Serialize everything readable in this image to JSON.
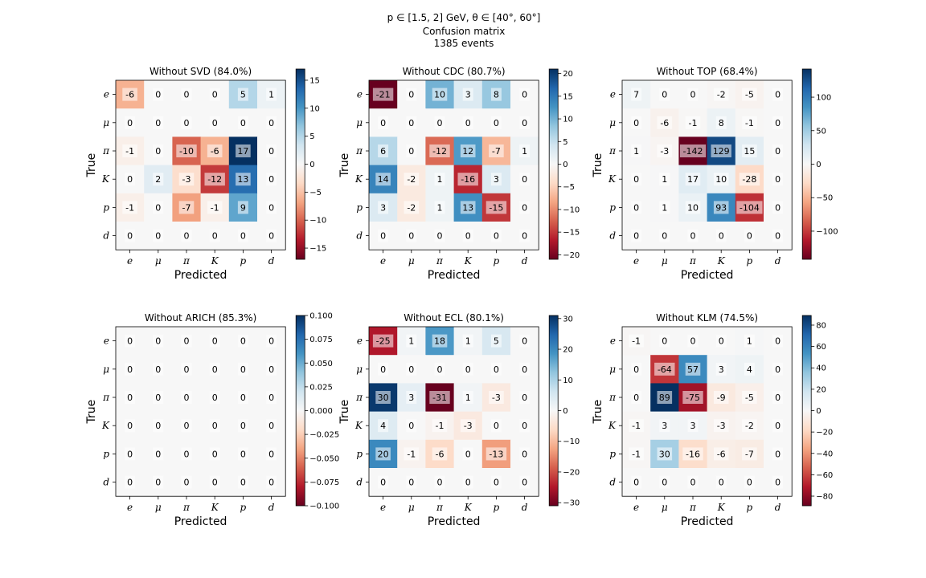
{
  "suptitle": {
    "line1": "p ∈ [1.5, 2] GeV, θ ∈ [40°, 60°]",
    "line2": "Confusion matrix",
    "line3": "1385 events"
  },
  "chart_data": [
    {
      "type": "heatmap",
      "title": "Without SVD (84.0%)",
      "xlabel": "Predicted",
      "ylabel": "True",
      "x_categories": [
        "e",
        "μ",
        "π",
        "K",
        "p",
        "d"
      ],
      "y_categories": [
        "e",
        "μ",
        "π",
        "K",
        "p",
        "d"
      ],
      "values": [
        [
          -6,
          0,
          0,
          0,
          5,
          1
        ],
        [
          0,
          0,
          0,
          0,
          0,
          0
        ],
        [
          -1,
          0,
          -10,
          -6,
          17,
          0
        ],
        [
          0,
          2,
          -3,
          -12,
          13,
          0
        ],
        [
          -1,
          0,
          -7,
          -1,
          9,
          0
        ],
        [
          0,
          0,
          0,
          0,
          0,
          0
        ]
      ],
      "colorbar": {
        "range": [
          -17,
          17
        ],
        "ticks": [
          15,
          10,
          5,
          0,
          -5,
          -10,
          -15
        ],
        "tick_labels": [
          "15",
          "10",
          "5",
          "0",
          "−5",
          "−10",
          "−15"
        ]
      }
    },
    {
      "type": "heatmap",
      "title": "Without CDC (80.7%)",
      "xlabel": "Predicted",
      "ylabel": "True",
      "x_categories": [
        "e",
        "μ",
        "π",
        "K",
        "p",
        "d"
      ],
      "y_categories": [
        "e",
        "μ",
        "π",
        "K",
        "p",
        "d"
      ],
      "values": [
        [
          -21,
          0,
          10,
          3,
          8,
          0
        ],
        [
          0,
          0,
          0,
          0,
          0,
          0
        ],
        [
          6,
          0,
          -12,
          12,
          -7,
          1
        ],
        [
          14,
          -2,
          1,
          -16,
          3,
          0
        ],
        [
          3,
          -2,
          1,
          13,
          -15,
          0
        ],
        [
          0,
          0,
          0,
          0,
          0,
          0
        ]
      ],
      "colorbar": {
        "range": [
          -21,
          21
        ],
        "ticks": [
          20,
          15,
          10,
          5,
          0,
          -5,
          -10,
          -15,
          -20
        ],
        "tick_labels": [
          "20",
          "15",
          "10",
          "5",
          "0",
          "−5",
          "−10",
          "−15",
          "−20"
        ]
      }
    },
    {
      "type": "heatmap",
      "title": "Without TOP (68.4%)",
      "xlabel": "Predicted",
      "ylabel": "True",
      "x_categories": [
        "e",
        "μ",
        "π",
        "K",
        "p",
        "d"
      ],
      "y_categories": [
        "e",
        "μ",
        "π",
        "K",
        "p",
        "d"
      ],
      "values": [
        [
          7,
          0,
          0,
          -2,
          -5,
          0
        ],
        [
          0,
          -6,
          -1,
          8,
          -1,
          0
        ],
        [
          1,
          -3,
          -142,
          129,
          15,
          0
        ],
        [
          0,
          1,
          17,
          10,
          -28,
          0
        ],
        [
          0,
          1,
          10,
          93,
          -104,
          0
        ],
        [
          0,
          0,
          0,
          0,
          0,
          0
        ]
      ],
      "colorbar": {
        "range": [
          -142,
          142
        ],
        "ticks": [
          100,
          50,
          0,
          -50,
          -100
        ],
        "tick_labels": [
          "100",
          "50",
          "0",
          "−50",
          "−100"
        ]
      }
    },
    {
      "type": "heatmap",
      "title": "Without ARICH (85.3%)",
      "xlabel": "Predicted",
      "ylabel": "True",
      "x_categories": [
        "e",
        "μ",
        "π",
        "K",
        "p",
        "d"
      ],
      "y_categories": [
        "e",
        "μ",
        "π",
        "K",
        "p",
        "d"
      ],
      "values": [
        [
          0,
          0,
          0,
          0,
          0,
          0
        ],
        [
          0,
          0,
          0,
          0,
          0,
          0
        ],
        [
          0,
          0,
          0,
          0,
          0,
          0
        ],
        [
          0,
          0,
          0,
          0,
          0,
          0
        ],
        [
          0,
          0,
          0,
          0,
          0,
          0
        ],
        [
          0,
          0,
          0,
          0,
          0,
          0
        ]
      ],
      "colorbar": {
        "range": [
          -0.1,
          0.1
        ],
        "ticks": [
          0.1,
          0.075,
          0.05,
          0.025,
          0,
          -0.025,
          -0.05,
          -0.075,
          -0.1
        ],
        "tick_labels": [
          "0.100",
          "0.075",
          "0.050",
          "0.025",
          "0.000",
          "−0.025",
          "−0.050",
          "−0.075",
          "−0.100"
        ]
      }
    },
    {
      "type": "heatmap",
      "title": "Without ECL (80.1%)",
      "xlabel": "Predicted",
      "ylabel": "True",
      "x_categories": [
        "e",
        "μ",
        "π",
        "K",
        "p",
        "d"
      ],
      "y_categories": [
        "e",
        "μ",
        "π",
        "K",
        "p",
        "d"
      ],
      "values": [
        [
          -25,
          1,
          18,
          1,
          5,
          0
        ],
        [
          0,
          0,
          0,
          0,
          0,
          0
        ],
        [
          30,
          3,
          -31,
          1,
          -3,
          0
        ],
        [
          4,
          0,
          -1,
          -3,
          0,
          0
        ],
        [
          20,
          -1,
          -6,
          0,
          -13,
          0
        ],
        [
          0,
          0,
          0,
          0,
          0,
          0
        ]
      ],
      "colorbar": {
        "range": [
          -31,
          31
        ],
        "ticks": [
          30,
          20,
          10,
          0,
          -10,
          -20,
          -30
        ],
        "tick_labels": [
          "30",
          "20",
          "10",
          "0",
          "−10",
          "−20",
          "−30"
        ]
      }
    },
    {
      "type": "heatmap",
      "title": "Without KLM (74.5%)",
      "xlabel": "Predicted",
      "ylabel": "True",
      "x_categories": [
        "e",
        "μ",
        "π",
        "K",
        "p",
        "d"
      ],
      "y_categories": [
        "e",
        "μ",
        "π",
        "K",
        "p",
        "d"
      ],
      "values": [
        [
          -1,
          0,
          0,
          0,
          1,
          0
        ],
        [
          0,
          -64,
          57,
          3,
          4,
          0
        ],
        [
          0,
          89,
          -75,
          -9,
          -5,
          0
        ],
        [
          -1,
          3,
          3,
          -3,
          -2,
          0
        ],
        [
          -1,
          30,
          -16,
          -6,
          -7,
          0
        ],
        [
          0,
          0,
          0,
          0,
          0,
          0
        ]
      ],
      "colorbar": {
        "range": [
          -89,
          89
        ],
        "ticks": [
          80,
          60,
          40,
          20,
          0,
          -20,
          -40,
          -60,
          -80
        ],
        "tick_labels": [
          "80",
          "60",
          "40",
          "20",
          "0",
          "−20",
          "−40",
          "−60",
          "−80"
        ]
      }
    }
  ]
}
